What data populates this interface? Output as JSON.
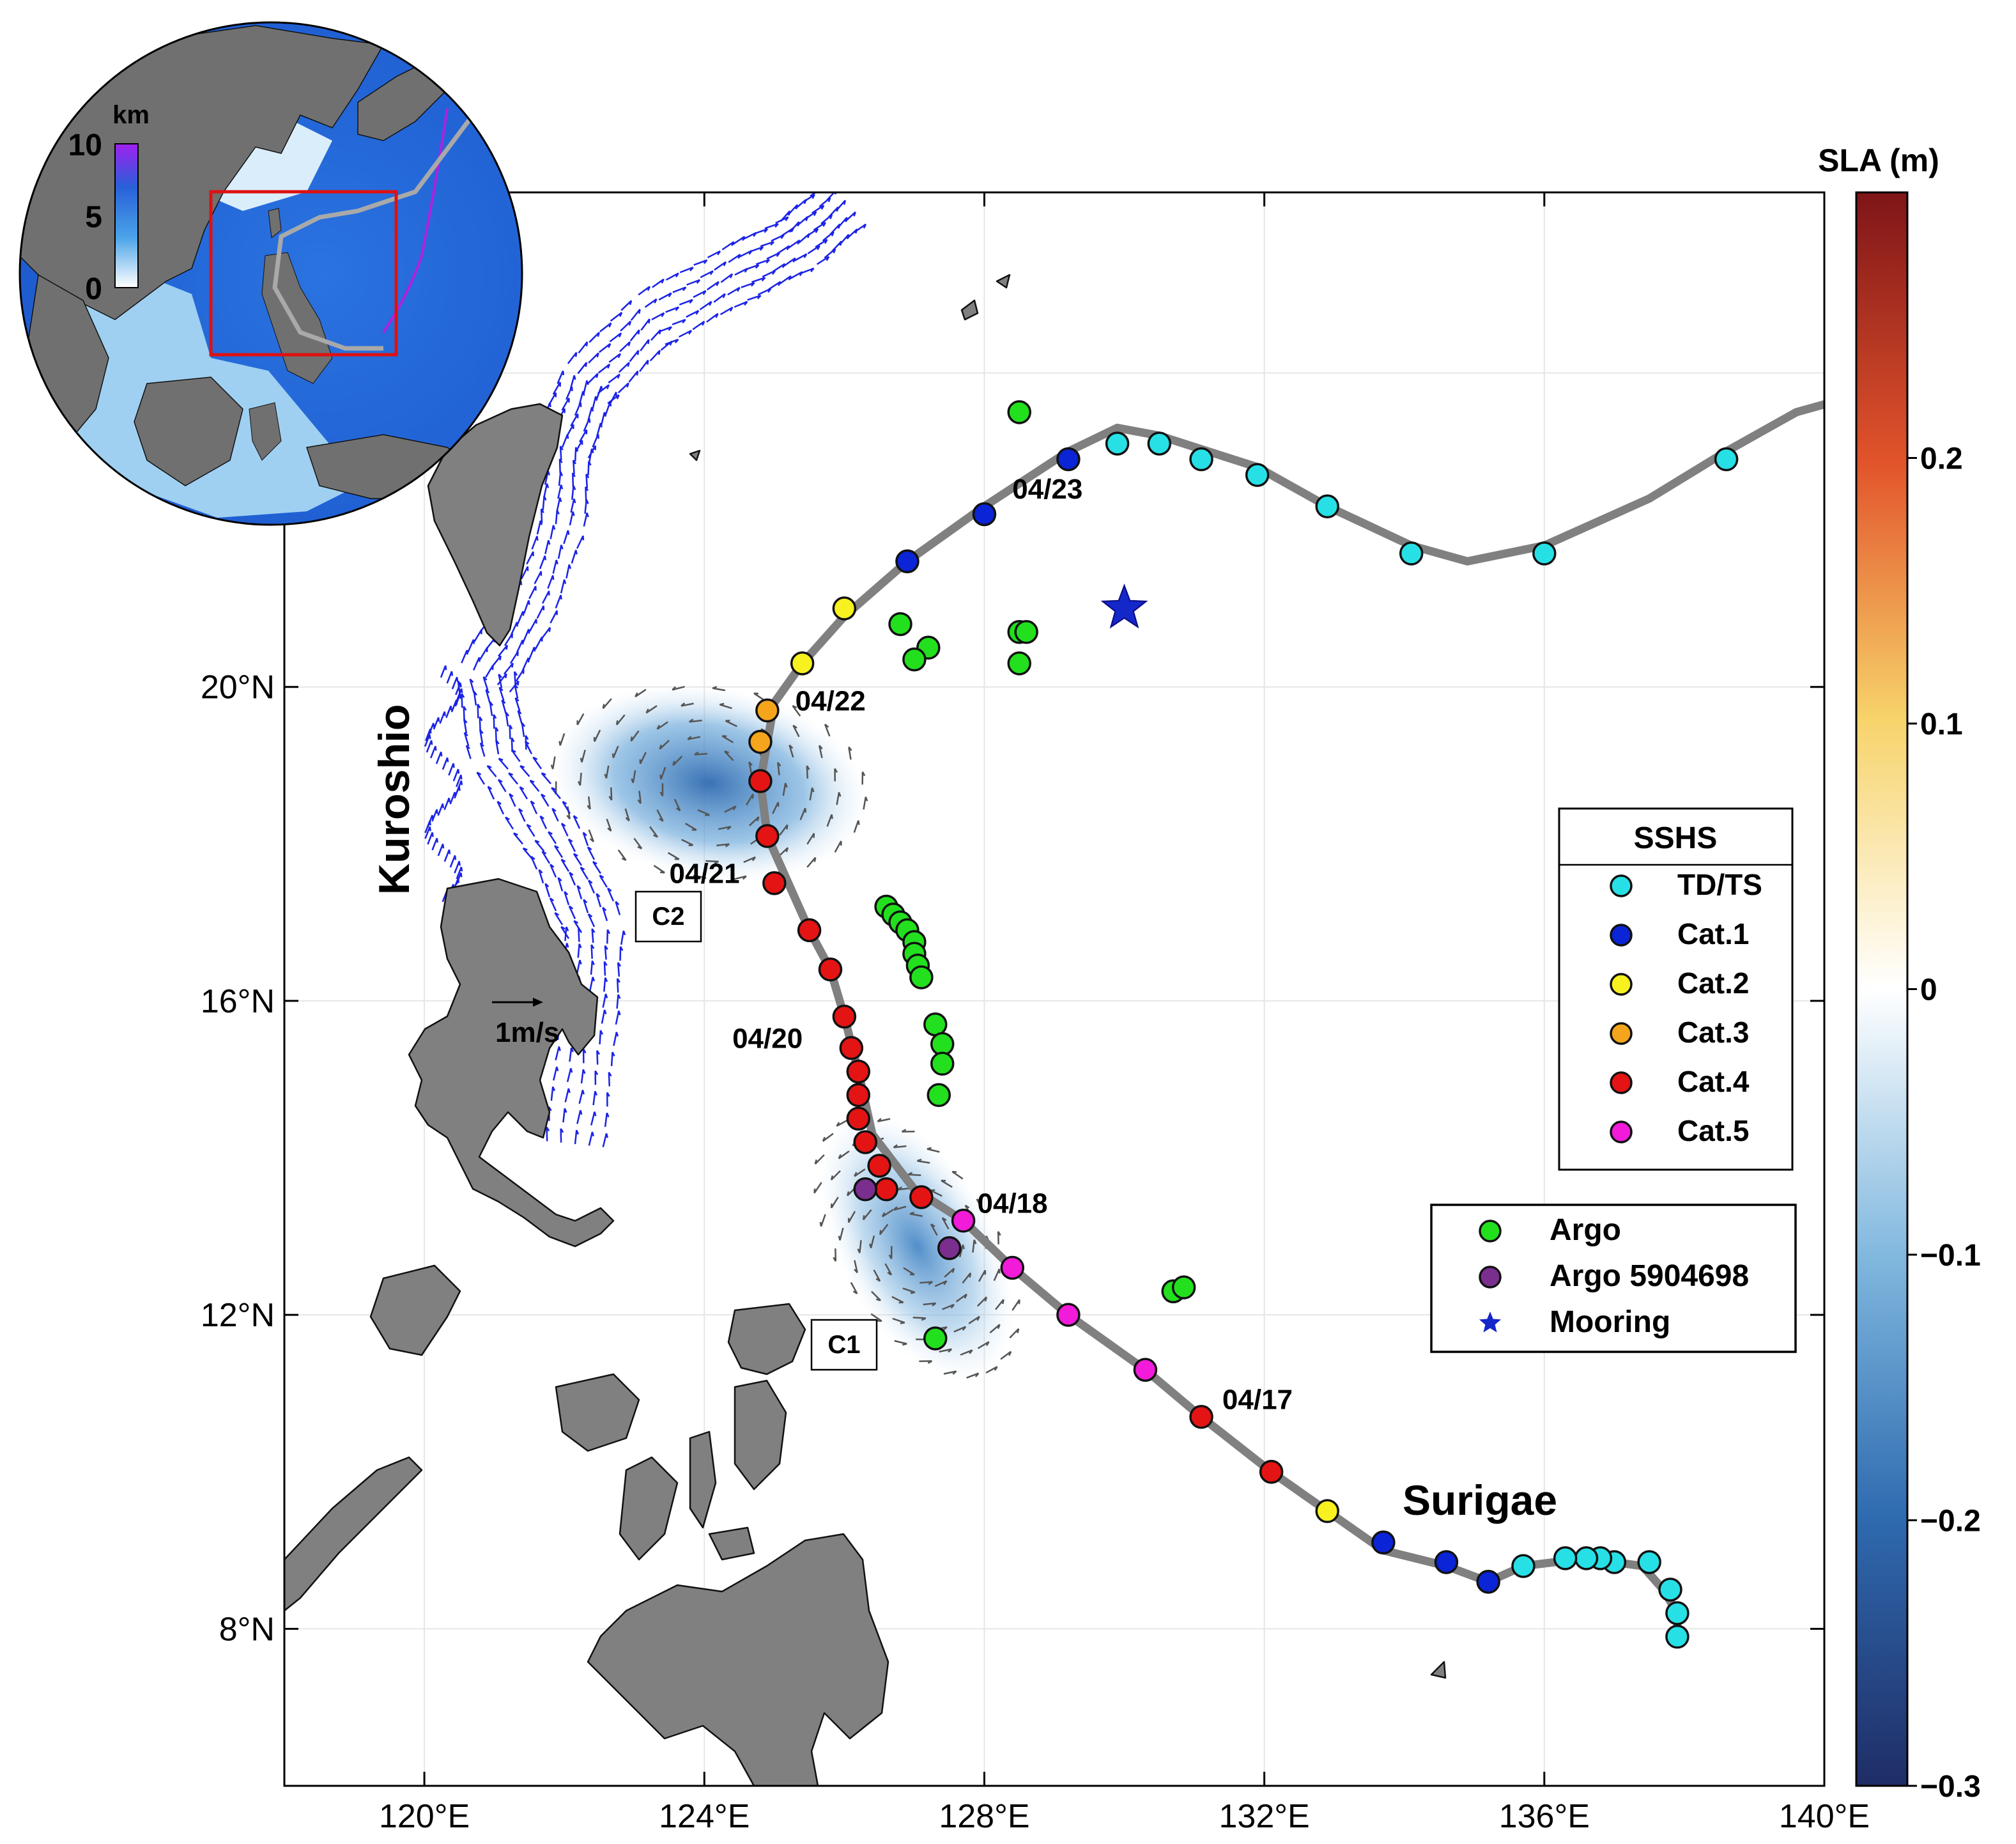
{
  "map": {
    "lon_range": [
      118,
      140
    ],
    "lat_range": [
      6,
      26.3
    ],
    "x_ticks": [
      {
        "lon": 120,
        "label": "120°E"
      },
      {
        "lon": 124,
        "label": "124°E"
      },
      {
        "lon": 128,
        "label": "128°E"
      },
      {
        "lon": 132,
        "label": "132°E"
      },
      {
        "lon": 136,
        "label": "136°E"
      },
      {
        "lon": 140,
        "label": "140°E"
      }
    ],
    "y_ticks": [
      {
        "lat": 8,
        "label": "8°N"
      },
      {
        "lat": 12,
        "label": "12°N"
      },
      {
        "lat": 16,
        "label": "16°N"
      },
      {
        "lat": 20,
        "label": "20°N"
      }
    ],
    "grid": true,
    "land_color": "#808080",
    "track_color": "#808080"
  },
  "labels": {
    "kuroshio": "Kuroshio",
    "surigae": "Surigae",
    "c1": "C1",
    "c2": "C2",
    "scale": "1m/s"
  },
  "track": {
    "line": [
      [
        137.9,
        7.9
      ],
      [
        137.9,
        8.2
      ],
      [
        137.7,
        8.5
      ],
      [
        137.4,
        8.8
      ],
      [
        136.6,
        8.9
      ],
      [
        135.7,
        8.8
      ],
      [
        135.2,
        8.6
      ],
      [
        134.6,
        8.8
      ],
      [
        133.7,
        9.0
      ],
      [
        132.9,
        9.5
      ],
      [
        132.1,
        10.0
      ],
      [
        131.1,
        10.7
      ],
      [
        130.3,
        11.3
      ],
      [
        129.2,
        12.0
      ],
      [
        128.4,
        12.6
      ],
      [
        127.7,
        13.2
      ],
      [
        127.0,
        13.6
      ],
      [
        126.4,
        14.3
      ],
      [
        126.2,
        15.1
      ],
      [
        126.0,
        15.8
      ],
      [
        125.8,
        16.4
      ],
      [
        125.5,
        16.9
      ],
      [
        125.2,
        17.5
      ],
      [
        124.9,
        18.1
      ],
      [
        124.8,
        18.8
      ],
      [
        124.9,
        19.3
      ],
      [
        125.0,
        19.8
      ],
      [
        125.4,
        20.3
      ],
      [
        126.0,
        20.9
      ],
      [
        126.9,
        21.6
      ],
      [
        128.0,
        22.3
      ],
      [
        129.2,
        23.0
      ],
      [
        129.9,
        23.3
      ],
      [
        130.5,
        23.2
      ],
      [
        131.2,
        23.0
      ],
      [
        131.9,
        22.8
      ],
      [
        132.9,
        22.3
      ],
      [
        134.1,
        21.8
      ],
      [
        134.9,
        21.6
      ],
      [
        136.0,
        21.8
      ],
      [
        137.5,
        22.4
      ],
      [
        138.6,
        23.0
      ],
      [
        139.6,
        23.5
      ],
      [
        140.0,
        23.6
      ]
    ],
    "points": [
      {
        "lon": 137.9,
        "lat": 7.9,
        "cat": "TD/TS"
      },
      {
        "lon": 137.9,
        "lat": 8.2,
        "cat": "TD/TS"
      },
      {
        "lon": 137.8,
        "lat": 8.5,
        "cat": "TD/TS"
      },
      {
        "lon": 137.5,
        "lat": 8.85,
        "cat": "TD/TS"
      },
      {
        "lon": 137.0,
        "lat": 8.85,
        "cat": "TD/TS"
      },
      {
        "lon": 136.8,
        "lat": 8.9,
        "cat": "TD/TS"
      },
      {
        "lon": 136.6,
        "lat": 8.9,
        "cat": "TD/TS"
      },
      {
        "lon": 136.3,
        "lat": 8.9,
        "cat": "TD/TS"
      },
      {
        "lon": 135.7,
        "lat": 8.8,
        "cat": "TD/TS"
      },
      {
        "lon": 135.2,
        "lat": 8.6,
        "cat": "Cat.1"
      },
      {
        "lon": 134.6,
        "lat": 8.85,
        "cat": "Cat.1"
      },
      {
        "lon": 133.7,
        "lat": 9.1,
        "cat": "Cat.1"
      },
      {
        "lon": 132.9,
        "lat": 9.5,
        "cat": "Cat.2"
      },
      {
        "lon": 132.1,
        "lat": 10.0,
        "cat": "Cat.4"
      },
      {
        "lon": 131.1,
        "lat": 10.7,
        "cat": "Cat.4"
      },
      {
        "lon": 130.3,
        "lat": 11.3,
        "cat": "Cat.5"
      },
      {
        "lon": 129.2,
        "lat": 12.0,
        "cat": "Cat.5"
      },
      {
        "lon": 128.4,
        "lat": 12.6,
        "cat": "Cat.5"
      },
      {
        "lon": 127.7,
        "lat": 13.2,
        "cat": "Cat.5"
      },
      {
        "lon": 127.1,
        "lat": 13.5,
        "cat": "Cat.4"
      },
      {
        "lon": 126.6,
        "lat": 13.6,
        "cat": "Cat.4"
      },
      {
        "lon": 126.5,
        "lat": 13.9,
        "cat": "Cat.4"
      },
      {
        "lon": 126.3,
        "lat": 14.2,
        "cat": "Cat.4"
      },
      {
        "lon": 126.2,
        "lat": 14.5,
        "cat": "Cat.4"
      },
      {
        "lon": 126.2,
        "lat": 14.8,
        "cat": "Cat.4"
      },
      {
        "lon": 126.2,
        "lat": 15.1,
        "cat": "Cat.4"
      },
      {
        "lon": 126.1,
        "lat": 15.4,
        "cat": "Cat.4"
      },
      {
        "lon": 126.0,
        "lat": 15.8,
        "cat": "Cat.4"
      },
      {
        "lon": 125.8,
        "lat": 16.4,
        "cat": "Cat.4"
      },
      {
        "lon": 125.5,
        "lat": 16.9,
        "cat": "Cat.4"
      },
      {
        "lon": 125.0,
        "lat": 17.5,
        "cat": "Cat.4"
      },
      {
        "lon": 124.9,
        "lat": 18.1,
        "cat": "Cat.4"
      },
      {
        "lon": 124.8,
        "lat": 18.8,
        "cat": "Cat.4"
      },
      {
        "lon": 124.8,
        "lat": 19.3,
        "cat": "Cat.3"
      },
      {
        "lon": 124.9,
        "lat": 19.7,
        "cat": "Cat.3"
      },
      {
        "lon": 125.4,
        "lat": 20.3,
        "cat": "Cat.2"
      },
      {
        "lon": 126.0,
        "lat": 21.0,
        "cat": "Cat.2"
      },
      {
        "lon": 126.9,
        "lat": 21.6,
        "cat": "Cat.1"
      },
      {
        "lon": 128.0,
        "lat": 22.2,
        "cat": "Cat.1"
      },
      {
        "lon": 129.2,
        "lat": 22.9,
        "cat": "Cat.1"
      },
      {
        "lon": 129.9,
        "lat": 23.1,
        "cat": "TD/TS"
      },
      {
        "lon": 130.5,
        "lat": 23.1,
        "cat": "TD/TS"
      },
      {
        "lon": 131.1,
        "lat": 22.9,
        "cat": "TD/TS"
      },
      {
        "lon": 131.9,
        "lat": 22.7,
        "cat": "TD/TS"
      },
      {
        "lon": 132.9,
        "lat": 22.3,
        "cat": "TD/TS"
      },
      {
        "lon": 134.1,
        "lat": 21.7,
        "cat": "TD/TS"
      },
      {
        "lon": 136.0,
        "lat": 21.7,
        "cat": "TD/TS"
      },
      {
        "lon": 138.6,
        "lat": 22.9,
        "cat": "TD/TS"
      }
    ],
    "date_labels": [
      {
        "text": "04/17",
        "lon": 131.4,
        "lat": 10.8
      },
      {
        "text": "04/18",
        "lon": 127.9,
        "lat": 13.3
      },
      {
        "text": "04/20",
        "lon": 124.4,
        "lat": 15.4
      },
      {
        "text": "04/21",
        "lon": 123.5,
        "lat": 17.5
      },
      {
        "text": "04/22",
        "lon": 125.3,
        "lat": 19.7
      },
      {
        "text": "04/23",
        "lon": 128.4,
        "lat": 22.4
      }
    ]
  },
  "argo": [
    {
      "lon": 128.5,
      "lat": 23.5
    },
    {
      "lon": 126.8,
      "lat": 20.8
    },
    {
      "lon": 127.2,
      "lat": 20.5
    },
    {
      "lon": 127.0,
      "lat": 20.35
    },
    {
      "lon": 128.5,
      "lat": 20.7
    },
    {
      "lon": 128.6,
      "lat": 20.7
    },
    {
      "lon": 128.5,
      "lat": 20.3
    },
    {
      "lon": 126.6,
      "lat": 17.2
    },
    {
      "lon": 126.7,
      "lat": 17.1
    },
    {
      "lon": 126.8,
      "lat": 17.0
    },
    {
      "lon": 126.9,
      "lat": 16.9
    },
    {
      "lon": 127.0,
      "lat": 16.75
    },
    {
      "lon": 127.0,
      "lat": 16.6
    },
    {
      "lon": 127.05,
      "lat": 16.45
    },
    {
      "lon": 127.1,
      "lat": 16.3
    },
    {
      "lon": 127.3,
      "lat": 15.7
    },
    {
      "lon": 127.4,
      "lat": 15.45
    },
    {
      "lon": 127.4,
      "lat": 15.2
    },
    {
      "lon": 127.35,
      "lat": 14.8
    },
    {
      "lon": 130.7,
      "lat": 12.3
    },
    {
      "lon": 130.85,
      "lat": 12.35
    },
    {
      "lon": 127.3,
      "lat": 11.7
    }
  ],
  "argo_5904698": [
    {
      "lon": 126.3,
      "lat": 13.6
    },
    {
      "lon": 127.5,
      "lat": 12.85
    }
  ],
  "mooring": {
    "lon": 130.0,
    "lat": 21.0
  },
  "categories": {
    "TD/TS": "#27e0e6",
    "Cat.1": "#0a24d6",
    "Cat.2": "#f7f21f",
    "Cat.3": "#f4a51c",
    "Cat.4": "#e41414",
    "Cat.5": "#f21bd9"
  },
  "legend_sshs": {
    "title": "SSHS",
    "items": [
      {
        "label": "TD/TS",
        "cat": "TD/TS"
      },
      {
        "label": "Cat.1",
        "cat": "Cat.1"
      },
      {
        "label": "Cat.2",
        "cat": "Cat.2"
      },
      {
        "label": "Cat.3",
        "cat": "Cat.3"
      },
      {
        "label": "Cat.4",
        "cat": "Cat.4"
      },
      {
        "label": "Cat.5",
        "cat": "Cat.5"
      }
    ]
  },
  "legend_obs": {
    "items": [
      {
        "label": "Argo",
        "marker": "circle",
        "color": "#22e01e"
      },
      {
        "label": "Argo 5904698",
        "marker": "circle",
        "color": "#7a2f8f"
      },
      {
        "label": "Mooring",
        "marker": "star",
        "color": "#1427c9"
      }
    ]
  },
  "colorbar": {
    "title": "SLA (m)",
    "range": [
      -0.3,
      0.3
    ],
    "ticks": [
      {
        "value": 0.2,
        "label": "0.2"
      },
      {
        "value": 0.1,
        "label": "0.1"
      },
      {
        "value": 0,
        "label": "0"
      },
      {
        "value": -0.1,
        "label": "−0.1"
      },
      {
        "value": -0.2,
        "label": "−0.2"
      },
      {
        "value": -0.3,
        "label": "−0.3"
      }
    ],
    "colors": [
      "#1f2d66",
      "#2f6bb0",
      "#7fb7de",
      "#ffffff",
      "#f7d36a",
      "#e2542b",
      "#7f1518"
    ]
  },
  "inset": {
    "depth_title": "km",
    "depth_ticks": [
      {
        "value": 10,
        "label": "10"
      },
      {
        "value": 5,
        "label": "5"
      },
      {
        "value": 0,
        "label": "0"
      }
    ]
  }
}
